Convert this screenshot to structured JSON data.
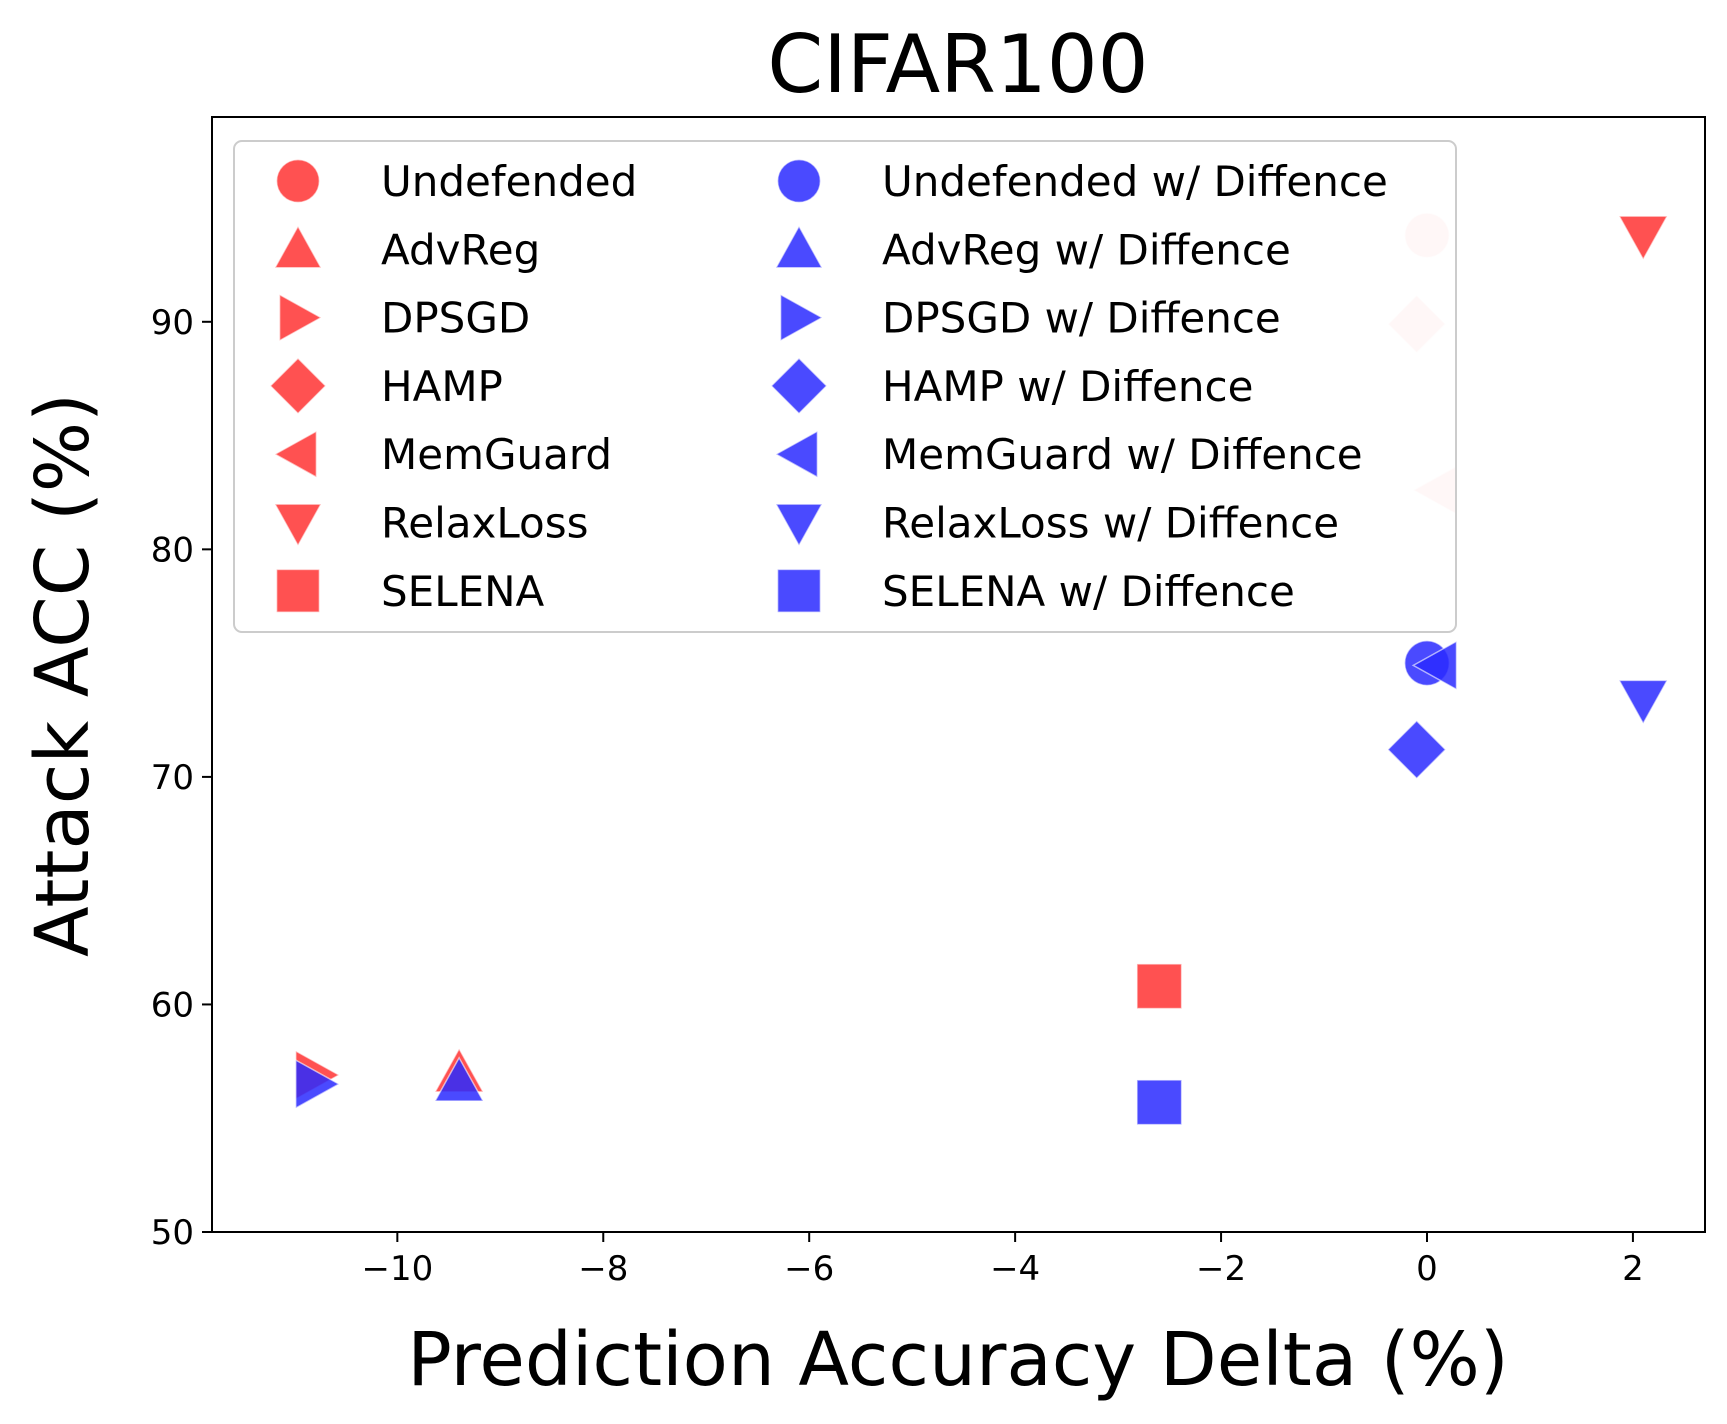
{
  "chart_data": {
    "type": "scatter",
    "title": "CIFAR100",
    "xlabel": "Prediction Accuracy Delta (%)",
    "ylabel": "Attack ACC (%)",
    "xlim": [
      -11.8,
      2.7
    ],
    "ylim": [
      50,
      99
    ],
    "xticks": [
      -10,
      -8,
      -6,
      -4,
      -2,
      0,
      2
    ],
    "xtick_labels": [
      "−10",
      "−8",
      "−6",
      "−4",
      "−2",
      "0",
      "2"
    ],
    "yticks": [
      50,
      60,
      70,
      80,
      90
    ],
    "ytick_labels": [
      "50",
      "60",
      "70",
      "80",
      "90"
    ],
    "grid": false,
    "legend": {
      "placement": "top-left",
      "columns": 2
    },
    "colors": {
      "undefended_series": "#ff3333",
      "diffence_series": "#2a2aff"
    },
    "series": [
      {
        "name": "Undefended",
        "marker": "circle",
        "group": "red",
        "x": 0.0,
        "y": 93.8,
        "alpha": 0.2
      },
      {
        "name": "AdvReg",
        "marker": "triangle-up",
        "group": "red",
        "x": -9.4,
        "y": 57.0,
        "alpha": 0.85
      },
      {
        "name": "DPSGD",
        "marker": "triangle-right",
        "group": "red",
        "x": -10.8,
        "y": 56.9,
        "alpha": 0.85
      },
      {
        "name": "HAMP",
        "marker": "diamond",
        "group": "red",
        "x": -0.1,
        "y": 89.9,
        "alpha": 0.2
      },
      {
        "name": "MemGuard",
        "marker": "triangle-left",
        "group": "red",
        "x": 0.1,
        "y": 82.6,
        "alpha": 0.2
      },
      {
        "name": "RelaxLoss",
        "marker": "triangle-down",
        "group": "red",
        "x": 2.1,
        "y": 93.8,
        "alpha": 0.85
      },
      {
        "name": "SELENA",
        "marker": "square",
        "group": "red",
        "x": -2.6,
        "y": 60.8,
        "alpha": 0.85
      },
      {
        "name": "Undefended w/ Diffence",
        "marker": "circle",
        "group": "blue",
        "x": 0.0,
        "y": 75.0,
        "alpha": 0.85
      },
      {
        "name": "AdvReg w/ Diffence",
        "marker": "triangle-up",
        "group": "blue",
        "x": -9.4,
        "y": 56.6,
        "alpha": 0.85
      },
      {
        "name": "DPSGD w/ Diffence",
        "marker": "triangle-right",
        "group": "blue",
        "x": -10.8,
        "y": 56.5,
        "alpha": 0.85
      },
      {
        "name": "HAMP w/ Diffence",
        "marker": "diamond",
        "group": "blue",
        "x": -0.1,
        "y": 71.2,
        "alpha": 0.85
      },
      {
        "name": "MemGuard w/ Diffence",
        "marker": "triangle-left",
        "group": "blue",
        "x": 0.1,
        "y": 74.9,
        "alpha": 0.85
      },
      {
        "name": "RelaxLoss w/ Diffence",
        "marker": "triangle-down",
        "group": "blue",
        "x": 2.1,
        "y": 73.4,
        "alpha": 0.85
      },
      {
        "name": "SELENA w/ Diffence",
        "marker": "square",
        "group": "blue",
        "x": -2.6,
        "y": 55.7,
        "alpha": 0.85
      }
    ]
  }
}
